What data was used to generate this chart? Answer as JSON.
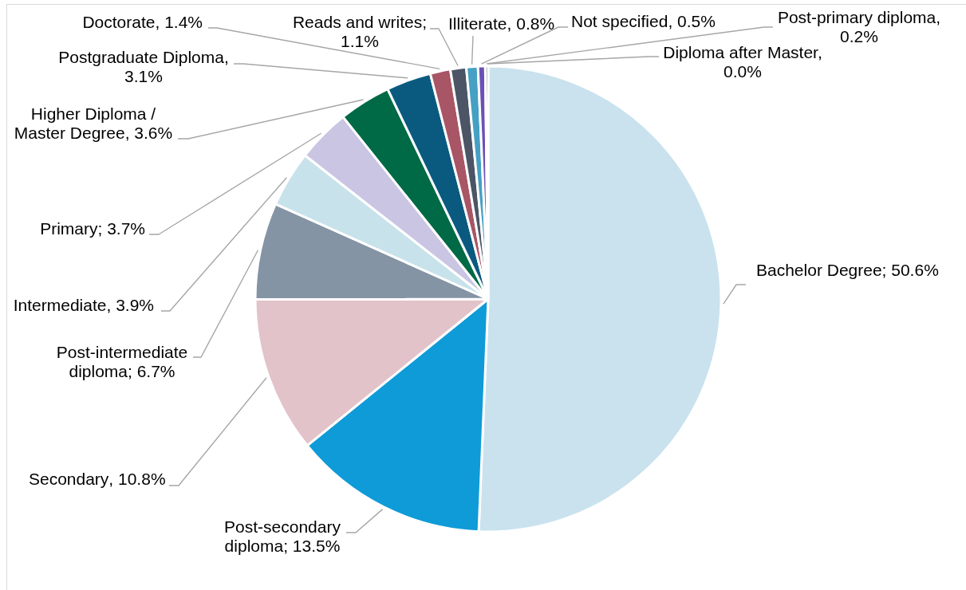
{
  "chart_data": {
    "type": "pie",
    "categories": [
      "Bachelor Degree",
      "Post-secondary diploma",
      "Secondary",
      "Post-intermediate diploma",
      "Intermediate",
      "Primary",
      "Higher Diploma / Master Degree",
      "Postgraduate Diploma",
      "Doctorate",
      "Reads and writes",
      "Illiterate",
      "Not specified",
      "Post-primary diploma",
      "Diploma after Master"
    ],
    "values": [
      50.6,
      13.5,
      10.8,
      6.7,
      3.9,
      3.7,
      3.6,
      3.1,
      1.4,
      1.1,
      0.8,
      0.5,
      0.2,
      0.0
    ],
    "colors": [
      "#c9e2ee",
      "#0f9bd8",
      "#e2c3c9",
      "#8494a4",
      "#c8e2eb",
      "#c9c5e3",
      "#006945",
      "#0a5a80",
      "#a85565",
      "#4b5565",
      "#45a0c4",
      "#6a50b5",
      "#7f7f7f",
      "#9fb6c9"
    ],
    "value_labels": [
      "; 50.6%",
      "; 13.5%",
      ", 10.8%",
      "; 6.7%",
      ", 3.9%",
      "; 3.7%",
      ", 3.6%",
      ", 3.1%",
      ", 1.4%",
      "; 1.1%",
      ", 0.8%",
      ", 0.5%",
      ", 0.2%",
      ", 0.0%"
    ]
  }
}
